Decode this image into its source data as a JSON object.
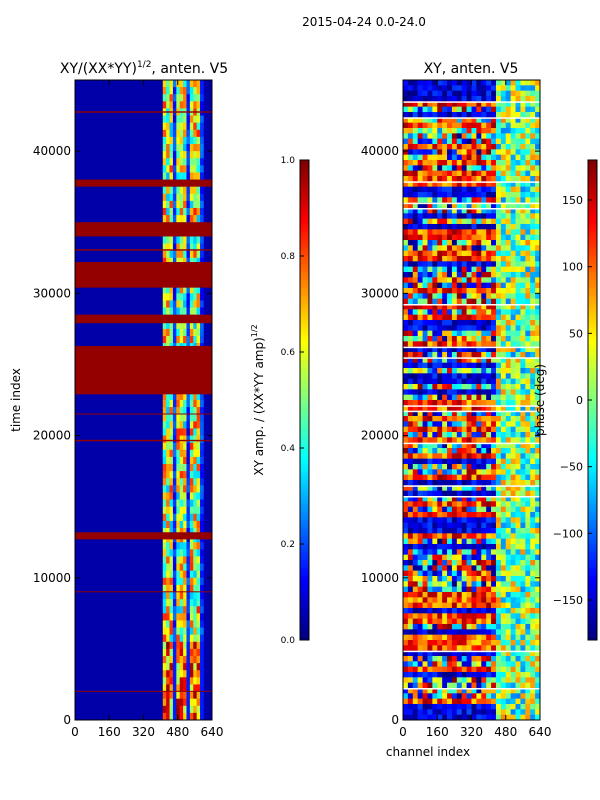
{
  "figure_title": "2015-04-24 0.0-24.0",
  "colors": {
    "jet_low": "#00007f",
    "jet_high": "#7f0000",
    "axes_edge": "#000000",
    "background": "#ffffff"
  },
  "chart_data": [
    {
      "type": "heatmap",
      "title": "XY/(XX*YY)^1/2, anten. V5",
      "title_parts": {
        "main": "XY/(XX*YY)",
        "sup": "1/2",
        "rest": ", anten. V5"
      },
      "xlabel": "",
      "ylabel": "time index",
      "xlim": [
        0,
        640
      ],
      "ylim": [
        0,
        45000
      ],
      "xticks": [
        0,
        160,
        320,
        480,
        640
      ],
      "yticks": [
        0,
        10000,
        20000,
        30000,
        40000
      ],
      "active_channel_range": [
        410,
        600
      ],
      "colorbar": {
        "label": "XY amp. / (XX*YY amp)^1/2",
        "label_parts": {
          "main": "XY amp. / (XX*YY amp)",
          "sup": "1/2"
        },
        "min": 0.0,
        "max": 1.0,
        "ticks": [
          "0.0",
          "0.2",
          "0.4",
          "0.6",
          "0.8",
          "1.0"
        ]
      },
      "saturated_time_bands": [
        [
          37500,
          38000
        ],
        [
          34000,
          35000
        ],
        [
          30400,
          32200
        ],
        [
          27900,
          28500
        ],
        [
          22900,
          26300
        ],
        [
          12700,
          13200
        ],
        [
          2000,
          2050
        ],
        [
          9000,
          9050
        ],
        [
          19600,
          19700
        ],
        [
          21500,
          21550
        ],
        [
          33000,
          33100
        ],
        [
          42700,
          42800
        ]
      ]
    },
    {
      "type": "heatmap",
      "title": "XY, anten. V5",
      "xlabel": "channel index",
      "ylabel": "",
      "xlim": [
        0,
        640
      ],
      "ylim": [
        0,
        45000
      ],
      "xticks": [
        0,
        160,
        320,
        480,
        640
      ],
      "yticks": [
        0,
        10000,
        20000,
        30000,
        40000
      ],
      "colorbar": {
        "label": "phase (deg)",
        "min": -180,
        "max": 180,
        "ticks": [
          "150",
          "100",
          "50",
          "0",
          "−50",
          "−100",
          "−150"
        ],
        "tick_values": [
          150,
          100,
          50,
          0,
          -50,
          -100,
          -150
        ]
      }
    }
  ]
}
